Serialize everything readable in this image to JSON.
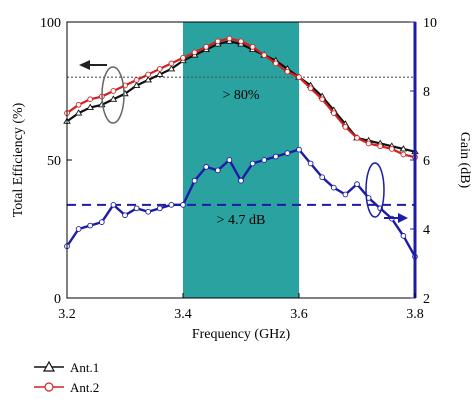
{
  "chart_data": {
    "type": "line",
    "x_label": "Frequency (GHz)",
    "y_left_label": "Total Efficiency (%)",
    "y_right_label": "Gain (dB)",
    "x_ticks": [
      "3.2",
      "3.4",
      "3.6",
      "3.8"
    ],
    "y_left_ticks": [
      "0",
      "50",
      "100"
    ],
    "y_right_ticks": [
      "2",
      "4",
      "6",
      "8",
      "10"
    ],
    "xlim": [
      3.2,
      3.8
    ],
    "ylim_left": [
      0,
      100
    ],
    "ylim_right": [
      2,
      10
    ],
    "band": {
      "from": 3.4,
      "to": 3.6,
      "color": "#2aa3a0"
    },
    "band_annotations": [
      "> 80%",
      "> 4.7 dB"
    ],
    "reference_lines": [
      {
        "axis": "left",
        "value": 80,
        "style": "dotted",
        "color": "#555555"
      },
      {
        "axis": "right",
        "value": 4.7,
        "style": "dashed",
        "color": "#1c1ca6"
      }
    ],
    "series": [
      {
        "name": "Ant.1",
        "kind": "efficiency",
        "axis": "left",
        "color": "#111111",
        "marker": "triangle",
        "x": [
          3.2,
          3.22,
          3.24,
          3.26,
          3.28,
          3.3,
          3.32,
          3.34,
          3.36,
          3.38,
          3.4,
          3.42,
          3.44,
          3.46,
          3.48,
          3.5,
          3.52,
          3.54,
          3.56,
          3.58,
          3.6,
          3.62,
          3.64,
          3.66,
          3.68,
          3.7,
          3.72,
          3.74,
          3.76,
          3.78,
          3.8
        ],
        "y": [
          64,
          67,
          69,
          70,
          72,
          74,
          77,
          79,
          81,
          83,
          86,
          88,
          90,
          92,
          93,
          92,
          90,
          88,
          86,
          83,
          80,
          77,
          73,
          68,
          63,
          58,
          57,
          56,
          55,
          54,
          53
        ]
      },
      {
        "name": "Ant.2",
        "kind": "efficiency",
        "axis": "left",
        "color": "#d42020",
        "marker": "circle",
        "x": [
          3.2,
          3.22,
          3.24,
          3.26,
          3.28,
          3.3,
          3.32,
          3.34,
          3.36,
          3.38,
          3.4,
          3.42,
          3.44,
          3.46,
          3.48,
          3.5,
          3.52,
          3.54,
          3.56,
          3.58,
          3.6,
          3.62,
          3.64,
          3.66,
          3.68,
          3.7,
          3.72,
          3.74,
          3.76,
          3.78,
          3.8
        ],
        "y": [
          67,
          70,
          72,
          73,
          75,
          77,
          79,
          81,
          83,
          85,
          87,
          89,
          91,
          93,
          94,
          93,
          91,
          88,
          85,
          82,
          80,
          76,
          72,
          67,
          62,
          58,
          56,
          55,
          54,
          52,
          51
        ]
      },
      {
        "name": "Gain",
        "kind": "gain",
        "axis": "right",
        "color": "#1c1ca6",
        "marker": "circle",
        "x": [
          3.2,
          3.22,
          3.24,
          3.26,
          3.28,
          3.3,
          3.32,
          3.34,
          3.36,
          3.38,
          3.4,
          3.42,
          3.44,
          3.46,
          3.48,
          3.5,
          3.52,
          3.54,
          3.56,
          3.58,
          3.6,
          3.62,
          3.64,
          3.66,
          3.68,
          3.7,
          3.72,
          3.74,
          3.76,
          3.78,
          3.8
        ],
        "y": [
          3.5,
          4.0,
          4.1,
          4.2,
          4.7,
          4.4,
          4.6,
          4.5,
          4.6,
          4.7,
          4.7,
          5.4,
          5.8,
          5.7,
          6.0,
          5.4,
          5.9,
          6.0,
          6.1,
          6.2,
          6.3,
          5.9,
          5.5,
          5.2,
          5.0,
          5.3,
          4.9,
          4.6,
          4.3,
          3.8,
          3.2
        ]
      }
    ],
    "legend": {
      "position": "bottom-left",
      "items": [
        "Ant.1",
        "Ant.2"
      ]
    }
  }
}
